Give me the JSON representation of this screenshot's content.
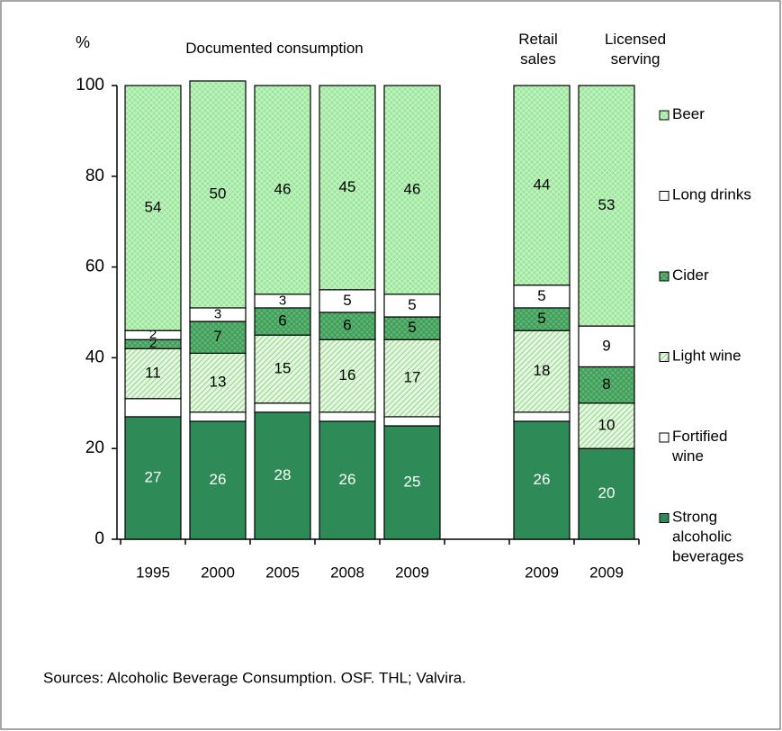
{
  "chart_data": {
    "type": "stacked_bar",
    "y_label": "%",
    "group_labels": [
      "Documented consumption",
      "Retail sales",
      "Licensed serving"
    ],
    "categories": [
      "1995",
      "2000",
      "2005",
      "2008",
      "2009",
      null,
      "2009",
      "2009"
    ],
    "series": [
      {
        "name": "Strong alcoholic beverages",
        "color": "#2e8b57",
        "pattern": "solid",
        "show_labels": true,
        "values": [
          27,
          26,
          28,
          26,
          25,
          null,
          26,
          20
        ]
      },
      {
        "name": "Fortified wine",
        "color": "#ffffff",
        "pattern": "solid",
        "show_labels": false,
        "values": [
          4,
          2,
          2,
          2,
          2,
          null,
          2,
          0
        ]
      },
      {
        "name": "Light wine",
        "color": "#e6f7df",
        "pattern": "diagonal",
        "show_labels": true,
        "values": [
          11,
          13,
          15,
          16,
          17,
          null,
          18,
          10
        ]
      },
      {
        "name": "Cider",
        "color": "#5fb574",
        "pattern": "dots",
        "show_labels": true,
        "values": [
          2,
          7,
          6,
          6,
          5,
          null,
          5,
          8
        ]
      },
      {
        "name": "Long drinks",
        "color": "#ffffff",
        "pattern": "solid",
        "show_labels": true,
        "values": [
          2,
          3,
          3,
          5,
          5,
          null,
          5,
          9
        ]
      },
      {
        "name": "Beer",
        "color": "#9de59d",
        "pattern": "crosshatch",
        "show_labels": true,
        "values": [
          54,
          50,
          46,
          45,
          46,
          null,
          44,
          53
        ]
      }
    ],
    "ylim": [
      0,
      100
    ],
    "yticks": [
      0,
      20,
      40,
      60,
      80,
      100
    ],
    "source": "Sources: Alcoholic Beverage Consumption. OSF. THL; Valvira."
  }
}
